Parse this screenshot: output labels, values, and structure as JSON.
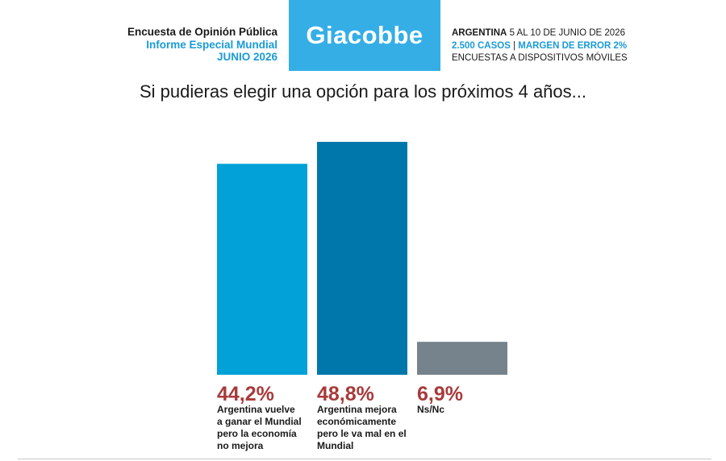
{
  "header": {
    "title": "Encuesta de Opinión Pública",
    "subtitle": "Informe Especial Mundial",
    "date": "JUNIO 2026",
    "logo": "Giacobbe",
    "country": "ARGENTINA",
    "dates": "5 AL 10 DE JUNIO DE 2026",
    "cases": "2.500 CASOS",
    "separator": "|",
    "margin": "MARGEN DE ERROR 2%",
    "method": "ENCUESTAS A DISPOSITIVOS MÓVILES"
  },
  "question": "Si pudieras elegir una opción para los próximos 4 años...",
  "colors": {
    "accent": "#35aee6",
    "value_label": "#a83a3a"
  },
  "chart_data": {
    "type": "bar",
    "categories": [
      "Argentina vuelve a ganar el Mundial pero la economía no mejora",
      "Argentina mejora económicamente pero le va mal en el Mundial",
      "Ns/Nc"
    ],
    "category_lines": [
      [
        "Argentina vuelve",
        "a ganar el Mundial",
        "pero la economía",
        "no mejora"
      ],
      [
        "Argentina mejora",
        "económicamente",
        "pero le va mal en el",
        "Mundial"
      ],
      [
        "Ns/Nc"
      ]
    ],
    "values": [
      44.2,
      48.8,
      6.9
    ],
    "value_labels": [
      "44,2%",
      "48,8%",
      "6,9%"
    ],
    "colors": [
      "#02a1d8",
      "#0077aa",
      "#77838c"
    ],
    "ylim": [
      0,
      48.8
    ],
    "grid": false
  }
}
